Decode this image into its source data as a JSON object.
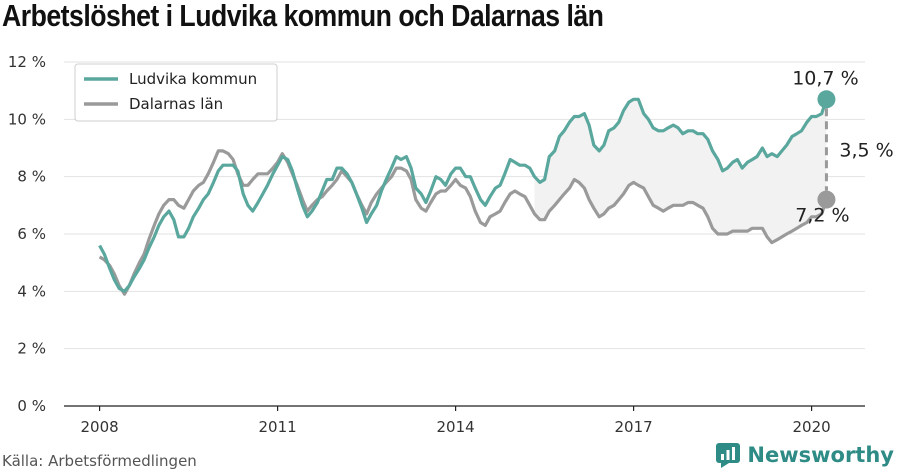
{
  "title": "Arbetslöshet i Ludvika kommun och Dalarnas län",
  "source": "Källa: Arbetsförmedlingen",
  "brand": "Newsworthy",
  "colors": {
    "ludvika": "#5aa79e",
    "dalarna": "#9a9a9a",
    "brand": "#2e8b85",
    "band": "#f2f2f2"
  },
  "chart_data": {
    "type": "line",
    "x_ticks": [
      "2008",
      "2011",
      "2014",
      "2017",
      "2020"
    ],
    "y_ticks": [
      "0 %",
      "2 %",
      "4 %",
      "6 %",
      "8 %",
      "10 %",
      "12 %"
    ],
    "xlim": [
      2007.4,
      2020.9
    ],
    "ylim": [
      0,
      12
    ],
    "grid": true,
    "legend": "top-left",
    "series": [
      {
        "name": "Ludvika kommun",
        "color": "#5aa79e",
        "points": [
          [
            2008.0,
            5.6
          ],
          [
            2008.08,
            5.3
          ],
          [
            2008.17,
            4.8
          ],
          [
            2008.25,
            4.4
          ],
          [
            2008.33,
            4.1
          ],
          [
            2008.42,
            4.0
          ],
          [
            2008.5,
            4.2
          ],
          [
            2008.58,
            4.5
          ],
          [
            2008.67,
            4.8
          ],
          [
            2008.75,
            5.1
          ],
          [
            2008.83,
            5.5
          ],
          [
            2008.92,
            5.9
          ],
          [
            2009.0,
            6.3
          ],
          [
            2009.08,
            6.6
          ],
          [
            2009.17,
            6.8
          ],
          [
            2009.25,
            6.5
          ],
          [
            2009.33,
            5.9
          ],
          [
            2009.42,
            5.9
          ],
          [
            2009.5,
            6.2
          ],
          [
            2009.58,
            6.6
          ],
          [
            2009.67,
            6.9
          ],
          [
            2009.75,
            7.2
          ],
          [
            2009.83,
            7.4
          ],
          [
            2009.92,
            7.8
          ],
          [
            2010.0,
            8.2
          ],
          [
            2010.08,
            8.4
          ],
          [
            2010.17,
            8.4
          ],
          [
            2010.25,
            8.4
          ],
          [
            2010.33,
            8.2
          ],
          [
            2010.42,
            7.4
          ],
          [
            2010.5,
            7.0
          ],
          [
            2010.58,
            6.8
          ],
          [
            2010.67,
            7.1
          ],
          [
            2010.75,
            7.4
          ],
          [
            2010.83,
            7.7
          ],
          [
            2010.92,
            8.1
          ],
          [
            2011.0,
            8.4
          ],
          [
            2011.08,
            8.7
          ],
          [
            2011.17,
            8.6
          ],
          [
            2011.25,
            8.2
          ],
          [
            2011.33,
            7.6
          ],
          [
            2011.42,
            7.0
          ],
          [
            2011.5,
            6.6
          ],
          [
            2011.58,
            6.8
          ],
          [
            2011.67,
            7.1
          ],
          [
            2011.75,
            7.5
          ],
          [
            2011.83,
            7.9
          ],
          [
            2011.92,
            7.9
          ],
          [
            2012.0,
            8.3
          ],
          [
            2012.08,
            8.3
          ],
          [
            2012.17,
            8.1
          ],
          [
            2012.25,
            7.8
          ],
          [
            2012.33,
            7.4
          ],
          [
            2012.42,
            6.9
          ],
          [
            2012.5,
            6.4
          ],
          [
            2012.58,
            6.7
          ],
          [
            2012.67,
            7.0
          ],
          [
            2012.75,
            7.5
          ],
          [
            2012.83,
            7.9
          ],
          [
            2012.92,
            8.3
          ],
          [
            2013.0,
            8.7
          ],
          [
            2013.08,
            8.6
          ],
          [
            2013.17,
            8.7
          ],
          [
            2013.25,
            8.3
          ],
          [
            2013.33,
            7.6
          ],
          [
            2013.42,
            7.4
          ],
          [
            2013.5,
            7.1
          ],
          [
            2013.58,
            7.5
          ],
          [
            2013.67,
            8.0
          ],
          [
            2013.75,
            7.9
          ],
          [
            2013.83,
            7.7
          ],
          [
            2013.92,
            8.1
          ],
          [
            2014.0,
            8.3
          ],
          [
            2014.08,
            8.3
          ],
          [
            2014.17,
            8.0
          ],
          [
            2014.25,
            8.0
          ],
          [
            2014.33,
            7.6
          ],
          [
            2014.42,
            7.2
          ],
          [
            2014.5,
            7.0
          ],
          [
            2014.58,
            7.3
          ],
          [
            2014.67,
            7.6
          ],
          [
            2014.75,
            7.7
          ],
          [
            2014.83,
            8.1
          ],
          [
            2014.92,
            8.6
          ],
          [
            2015.0,
            8.5
          ],
          [
            2015.08,
            8.4
          ],
          [
            2015.17,
            8.4
          ],
          [
            2015.25,
            8.3
          ],
          [
            2015.33,
            8.0
          ],
          [
            2015.42,
            7.8
          ],
          [
            2015.5,
            7.9
          ],
          [
            2015.58,
            8.7
          ],
          [
            2015.67,
            8.9
          ],
          [
            2015.75,
            9.4
          ],
          [
            2015.83,
            9.6
          ],
          [
            2015.92,
            9.9
          ],
          [
            2016.0,
            10.1
          ],
          [
            2016.08,
            10.1
          ],
          [
            2016.17,
            10.2
          ],
          [
            2016.25,
            9.8
          ],
          [
            2016.33,
            9.1
          ],
          [
            2016.42,
            8.9
          ],
          [
            2016.5,
            9.1
          ],
          [
            2016.58,
            9.6
          ],
          [
            2016.67,
            9.7
          ],
          [
            2016.75,
            9.9
          ],
          [
            2016.83,
            10.3
          ],
          [
            2016.92,
            10.6
          ],
          [
            2017.0,
            10.7
          ],
          [
            2017.08,
            10.7
          ],
          [
            2017.17,
            10.2
          ],
          [
            2017.25,
            10.0
          ],
          [
            2017.33,
            9.7
          ],
          [
            2017.42,
            9.6
          ],
          [
            2017.5,
            9.6
          ],
          [
            2017.58,
            9.7
          ],
          [
            2017.67,
            9.8
          ],
          [
            2017.75,
            9.7
          ],
          [
            2017.83,
            9.5
          ],
          [
            2017.92,
            9.6
          ],
          [
            2018.0,
            9.6
          ],
          [
            2018.08,
            9.5
          ],
          [
            2018.17,
            9.5
          ],
          [
            2018.25,
            9.3
          ],
          [
            2018.33,
            8.9
          ],
          [
            2018.42,
            8.6
          ],
          [
            2018.5,
            8.2
          ],
          [
            2018.58,
            8.3
          ],
          [
            2018.67,
            8.5
          ],
          [
            2018.75,
            8.6
          ],
          [
            2018.83,
            8.3
          ],
          [
            2018.92,
            8.5
          ],
          [
            2019.0,
            8.6
          ],
          [
            2019.08,
            8.7
          ],
          [
            2019.17,
            9.0
          ],
          [
            2019.25,
            8.7
          ],
          [
            2019.33,
            8.8
          ],
          [
            2019.42,
            8.7
          ],
          [
            2019.5,
            8.9
          ],
          [
            2019.58,
            9.1
          ],
          [
            2019.67,
            9.4
          ],
          [
            2019.75,
            9.5
          ],
          [
            2019.83,
            9.6
          ],
          [
            2019.92,
            9.9
          ],
          [
            2020.0,
            10.1
          ],
          [
            2020.08,
            10.1
          ],
          [
            2020.17,
            10.2
          ],
          [
            2020.25,
            10.7
          ]
        ]
      },
      {
        "name": "Dalarnas län",
        "color": "#9a9a9a",
        "points": [
          [
            2008.0,
            5.2
          ],
          [
            2008.08,
            5.1
          ],
          [
            2008.17,
            4.9
          ],
          [
            2008.25,
            4.6
          ],
          [
            2008.33,
            4.2
          ],
          [
            2008.42,
            3.9
          ],
          [
            2008.5,
            4.2
          ],
          [
            2008.58,
            4.6
          ],
          [
            2008.67,
            5.0
          ],
          [
            2008.75,
            5.3
          ],
          [
            2008.83,
            5.8
          ],
          [
            2008.92,
            6.3
          ],
          [
            2009.0,
            6.7
          ],
          [
            2009.08,
            7.0
          ],
          [
            2009.17,
            7.2
          ],
          [
            2009.25,
            7.2
          ],
          [
            2009.33,
            7.0
          ],
          [
            2009.42,
            6.9
          ],
          [
            2009.5,
            7.2
          ],
          [
            2009.58,
            7.5
          ],
          [
            2009.67,
            7.7
          ],
          [
            2009.75,
            7.8
          ],
          [
            2009.83,
            8.1
          ],
          [
            2009.92,
            8.5
          ],
          [
            2010.0,
            8.9
          ],
          [
            2010.08,
            8.9
          ],
          [
            2010.17,
            8.8
          ],
          [
            2010.25,
            8.6
          ],
          [
            2010.33,
            8.1
          ],
          [
            2010.42,
            7.7
          ],
          [
            2010.5,
            7.7
          ],
          [
            2010.58,
            7.9
          ],
          [
            2010.67,
            8.1
          ],
          [
            2010.75,
            8.1
          ],
          [
            2010.83,
            8.1
          ],
          [
            2010.92,
            8.3
          ],
          [
            2011.0,
            8.5
          ],
          [
            2011.08,
            8.8
          ],
          [
            2011.17,
            8.5
          ],
          [
            2011.25,
            8.1
          ],
          [
            2011.33,
            7.7
          ],
          [
            2011.42,
            7.2
          ],
          [
            2011.5,
            6.8
          ],
          [
            2011.58,
            7.0
          ],
          [
            2011.67,
            7.2
          ],
          [
            2011.75,
            7.3
          ],
          [
            2011.83,
            7.5
          ],
          [
            2011.92,
            7.7
          ],
          [
            2012.0,
            7.9
          ],
          [
            2012.08,
            8.2
          ],
          [
            2012.17,
            8.0
          ],
          [
            2012.25,
            7.8
          ],
          [
            2012.33,
            7.4
          ],
          [
            2012.42,
            7.0
          ],
          [
            2012.5,
            6.7
          ],
          [
            2012.58,
            7.1
          ],
          [
            2012.67,
            7.4
          ],
          [
            2012.75,
            7.6
          ],
          [
            2012.83,
            7.8
          ],
          [
            2012.92,
            8.0
          ],
          [
            2013.0,
            8.3
          ],
          [
            2013.08,
            8.3
          ],
          [
            2013.17,
            8.2
          ],
          [
            2013.25,
            7.9
          ],
          [
            2013.33,
            7.2
          ],
          [
            2013.42,
            6.9
          ],
          [
            2013.5,
            6.8
          ],
          [
            2013.58,
            7.1
          ],
          [
            2013.67,
            7.4
          ],
          [
            2013.75,
            7.5
          ],
          [
            2013.83,
            7.5
          ],
          [
            2013.92,
            7.7
          ],
          [
            2014.0,
            7.9
          ],
          [
            2014.08,
            7.7
          ],
          [
            2014.17,
            7.6
          ],
          [
            2014.25,
            7.3
          ],
          [
            2014.33,
            6.8
          ],
          [
            2014.42,
            6.4
          ],
          [
            2014.5,
            6.3
          ],
          [
            2014.58,
            6.6
          ],
          [
            2014.67,
            6.7
          ],
          [
            2014.75,
            6.8
          ],
          [
            2014.83,
            7.1
          ],
          [
            2014.92,
            7.4
          ],
          [
            2015.0,
            7.5
          ],
          [
            2015.08,
            7.4
          ],
          [
            2015.17,
            7.3
          ],
          [
            2015.25,
            7.0
          ],
          [
            2015.33,
            6.7
          ],
          [
            2015.42,
            6.5
          ],
          [
            2015.5,
            6.5
          ],
          [
            2015.58,
            6.8
          ],
          [
            2015.67,
            7.0
          ],
          [
            2015.75,
            7.2
          ],
          [
            2015.83,
            7.4
          ],
          [
            2015.92,
            7.6
          ],
          [
            2016.0,
            7.9
          ],
          [
            2016.08,
            7.8
          ],
          [
            2016.17,
            7.6
          ],
          [
            2016.25,
            7.2
          ],
          [
            2016.33,
            6.9
          ],
          [
            2016.42,
            6.6
          ],
          [
            2016.5,
            6.7
          ],
          [
            2016.58,
            6.9
          ],
          [
            2016.67,
            7.0
          ],
          [
            2016.75,
            7.2
          ],
          [
            2016.83,
            7.4
          ],
          [
            2016.92,
            7.7
          ],
          [
            2017.0,
            7.8
          ],
          [
            2017.08,
            7.7
          ],
          [
            2017.17,
            7.6
          ],
          [
            2017.25,
            7.3
          ],
          [
            2017.33,
            7.0
          ],
          [
            2017.42,
            6.9
          ],
          [
            2017.5,
            6.8
          ],
          [
            2017.58,
            6.9
          ],
          [
            2017.67,
            7.0
          ],
          [
            2017.75,
            7.0
          ],
          [
            2017.83,
            7.0
          ],
          [
            2017.92,
            7.1
          ],
          [
            2018.0,
            7.1
          ],
          [
            2018.08,
            7.0
          ],
          [
            2018.17,
            6.9
          ],
          [
            2018.25,
            6.6
          ],
          [
            2018.33,
            6.2
          ],
          [
            2018.42,
            6.0
          ],
          [
            2018.5,
            6.0
          ],
          [
            2018.58,
            6.0
          ],
          [
            2018.67,
            6.1
          ],
          [
            2018.75,
            6.1
          ],
          [
            2018.83,
            6.1
          ],
          [
            2018.92,
            6.1
          ],
          [
            2019.0,
            6.2
          ],
          [
            2019.08,
            6.2
          ],
          [
            2019.17,
            6.2
          ],
          [
            2019.25,
            5.9
          ],
          [
            2019.33,
            5.7
          ],
          [
            2019.42,
            5.8
          ],
          [
            2019.5,
            5.9
          ],
          [
            2019.58,
            6.0
          ],
          [
            2019.67,
            6.1
          ],
          [
            2019.75,
            6.2
          ],
          [
            2019.83,
            6.3
          ],
          [
            2019.92,
            6.4
          ],
          [
            2020.0,
            6.6
          ],
          [
            2020.08,
            6.6
          ],
          [
            2020.17,
            6.7
          ],
          [
            2020.25,
            7.2
          ]
        ]
      }
    ],
    "band_from": 2015.3,
    "annotations": {
      "end_x": 2020.25,
      "ludvika_end": "10,7 %",
      "dalarna_end": "7,2 %",
      "gap": "3,5 %"
    }
  }
}
